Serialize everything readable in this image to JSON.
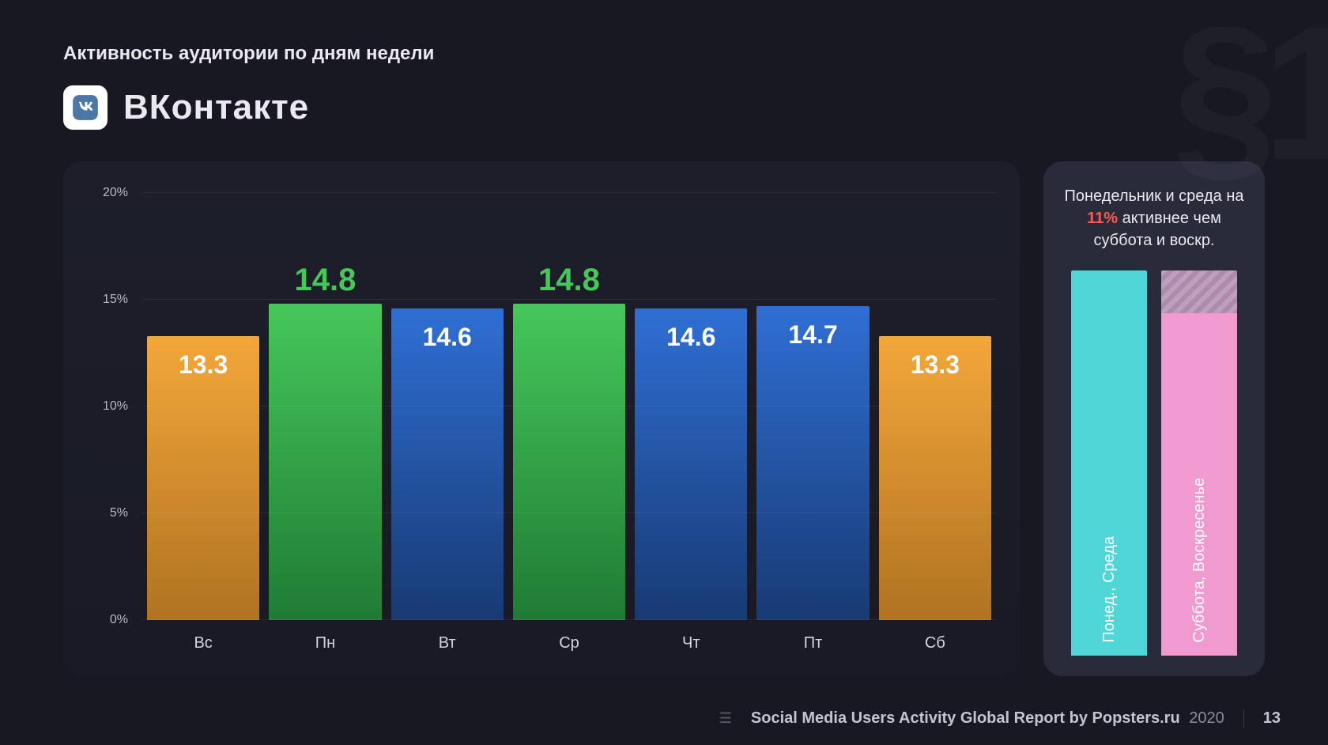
{
  "header": {
    "subtitle": "Активность аудитории по дням недели",
    "brand": "ВКонтакте",
    "icon_bg": "#ffffff",
    "icon_fg": "#4a76a8"
  },
  "watermark": "§1",
  "chart": {
    "type": "bar",
    "ylim": [
      0,
      20
    ],
    "ytick_step": 5,
    "ytick_suffix": "%",
    "grid_color": "rgba(255,255,255,0.07)",
    "highlight_label_color": "#46c75a",
    "bars": [
      {
        "cat": "Вс",
        "value": 13.3,
        "color_top": "#f3a73a",
        "color_bottom": "#b07321",
        "label_pos": "inside"
      },
      {
        "cat": "Пн",
        "value": 14.8,
        "color_top": "#46c75a",
        "color_bottom": "#1f7b34",
        "label_pos": "above"
      },
      {
        "cat": "Вт",
        "value": 14.6,
        "color_top": "#2f6fd4",
        "color_bottom": "#173a73",
        "label_pos": "inside"
      },
      {
        "cat": "Ср",
        "value": 14.8,
        "color_top": "#46c75a",
        "color_bottom": "#1f7b34",
        "label_pos": "above"
      },
      {
        "cat": "Чт",
        "value": 14.6,
        "color_top": "#2f6fd4",
        "color_bottom": "#173a73",
        "label_pos": "inside"
      },
      {
        "cat": "Пт",
        "value": 14.7,
        "color_top": "#2f6fd4",
        "color_bottom": "#173a73",
        "label_pos": "inside"
      },
      {
        "cat": "Сб",
        "value": 13.3,
        "color_top": "#f3a73a",
        "color_bottom": "#b07321",
        "label_pos": "inside"
      }
    ]
  },
  "side": {
    "text_pre": "Понедельник и среда на ",
    "highlight": "11%",
    "highlight_color": "#ff5a4d",
    "text_post": " активнее чем суббота и воскр.",
    "bars": [
      {
        "label": "Понед., Среда",
        "height_pct": 100,
        "color": "#4fd6d6",
        "hatch_pct": 0
      },
      {
        "label": "Суббота, Воскресенье",
        "height_pct": 100,
        "color": "#f19ad0",
        "hatch_pct": 11
      }
    ],
    "mini_area_height": 430
  },
  "footer": {
    "credit_plain": "Social Media Users Activity Global Report by ",
    "credit_bold": "Popsters.ru",
    "year": "2020",
    "page": "13"
  }
}
